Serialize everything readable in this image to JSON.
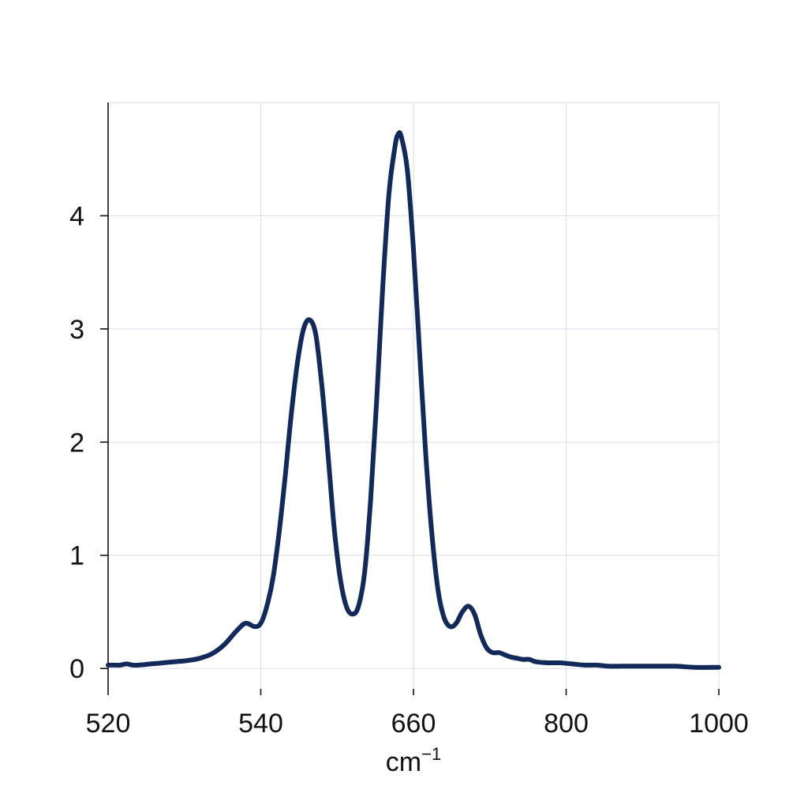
{
  "chart_data": {
    "type": "line",
    "title": "",
    "xlabel": "cm",
    "xlabel_superscript": "−1",
    "ylabel": "",
    "x_ticks": [
      520,
      540,
      660,
      800,
      1000
    ],
    "y_ticks": [
      0,
      1,
      2,
      3,
      4
    ],
    "ylim": [
      -0.18,
      5.0
    ],
    "grid": true,
    "line_color": "#13295a",
    "series": [
      {
        "points": [
          [
            0.0,
            0.03
          ],
          [
            0.01,
            0.03
          ],
          [
            0.02,
            0.03
          ],
          [
            0.03,
            0.04
          ],
          [
            0.04,
            0.03
          ],
          [
            0.05,
            0.03
          ],
          [
            0.07,
            0.04
          ],
          [
            0.09,
            0.05
          ],
          [
            0.11,
            0.06
          ],
          [
            0.13,
            0.07
          ],
          [
            0.15,
            0.09
          ],
          [
            0.17,
            0.13
          ],
          [
            0.19,
            0.21
          ],
          [
            0.21,
            0.33
          ],
          [
            0.225,
            0.4
          ],
          [
            0.24,
            0.37
          ],
          [
            0.25,
            0.4
          ],
          [
            0.26,
            0.55
          ],
          [
            0.27,
            0.8
          ],
          [
            0.28,
            1.2
          ],
          [
            0.29,
            1.7
          ],
          [
            0.3,
            2.25
          ],
          [
            0.31,
            2.7
          ],
          [
            0.32,
            3.0
          ],
          [
            0.33,
            3.08
          ],
          [
            0.34,
            2.95
          ],
          [
            0.35,
            2.5
          ],
          [
            0.36,
            1.9
          ],
          [
            0.37,
            1.25
          ],
          [
            0.38,
            0.8
          ],
          [
            0.39,
            0.55
          ],
          [
            0.4,
            0.48
          ],
          [
            0.41,
            0.55
          ],
          [
            0.42,
            0.85
          ],
          [
            0.43,
            1.5
          ],
          [
            0.44,
            2.4
          ],
          [
            0.45,
            3.4
          ],
          [
            0.46,
            4.2
          ],
          [
            0.47,
            4.62
          ],
          [
            0.475,
            4.72
          ],
          [
            0.48,
            4.7
          ],
          [
            0.49,
            4.4
          ],
          [
            0.5,
            3.7
          ],
          [
            0.51,
            2.8
          ],
          [
            0.52,
            1.9
          ],
          [
            0.53,
            1.2
          ],
          [
            0.54,
            0.7
          ],
          [
            0.55,
            0.45
          ],
          [
            0.56,
            0.37
          ],
          [
            0.57,
            0.4
          ],
          [
            0.58,
            0.5
          ],
          [
            0.59,
            0.55
          ],
          [
            0.6,
            0.48
          ],
          [
            0.61,
            0.3
          ],
          [
            0.62,
            0.18
          ],
          [
            0.63,
            0.14
          ],
          [
            0.64,
            0.14
          ],
          [
            0.65,
            0.12
          ],
          [
            0.66,
            0.1
          ],
          [
            0.67,
            0.09
          ],
          [
            0.68,
            0.08
          ],
          [
            0.69,
            0.08
          ],
          [
            0.7,
            0.06
          ],
          [
            0.72,
            0.05
          ],
          [
            0.74,
            0.05
          ],
          [
            0.76,
            0.04
          ],
          [
            0.78,
            0.03
          ],
          [
            0.8,
            0.03
          ],
          [
            0.82,
            0.02
          ],
          [
            0.84,
            0.02
          ],
          [
            0.86,
            0.02
          ],
          [
            0.88,
            0.02
          ],
          [
            0.9,
            0.02
          ],
          [
            0.93,
            0.02
          ],
          [
            0.96,
            0.01
          ],
          [
            1.0,
            0.01
          ]
        ]
      }
    ]
  }
}
